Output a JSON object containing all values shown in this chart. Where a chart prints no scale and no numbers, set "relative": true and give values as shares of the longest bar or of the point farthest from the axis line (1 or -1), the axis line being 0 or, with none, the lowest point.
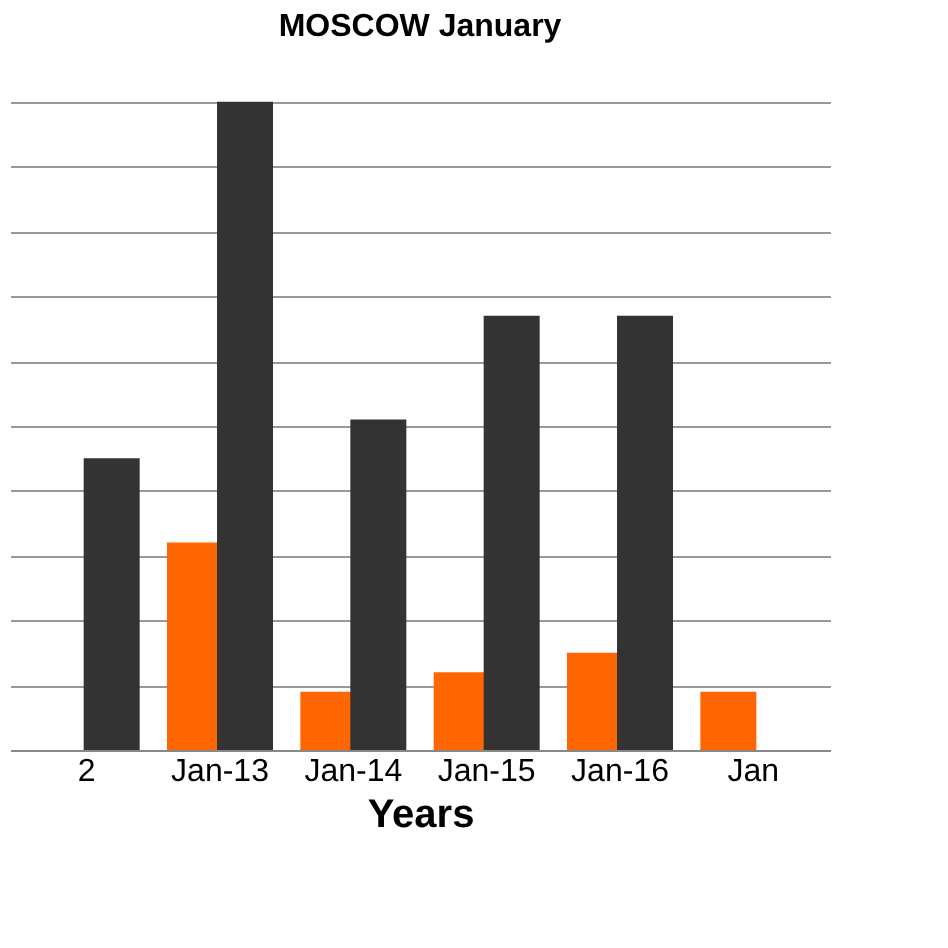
{
  "chart_data": {
    "type": "bar",
    "title": "MOSCOW January",
    "xlabel": "Years",
    "relative": true,
    "grid": "y",
    "categories": [
      "2",
      "Jan-13",
      "Jan-14",
      "Jan-15",
      "Jan-16",
      "Jan"
    ],
    "series": [
      {
        "color": "#ff6600",
        "values": [
          null,
          0.32,
          0.09,
          0.12,
          0.15,
          0.09
        ]
      },
      {
        "color": "#333333",
        "values": [
          0.45,
          1,
          0.51,
          0.67,
          0.67,
          null
        ]
      }
    ]
  }
}
